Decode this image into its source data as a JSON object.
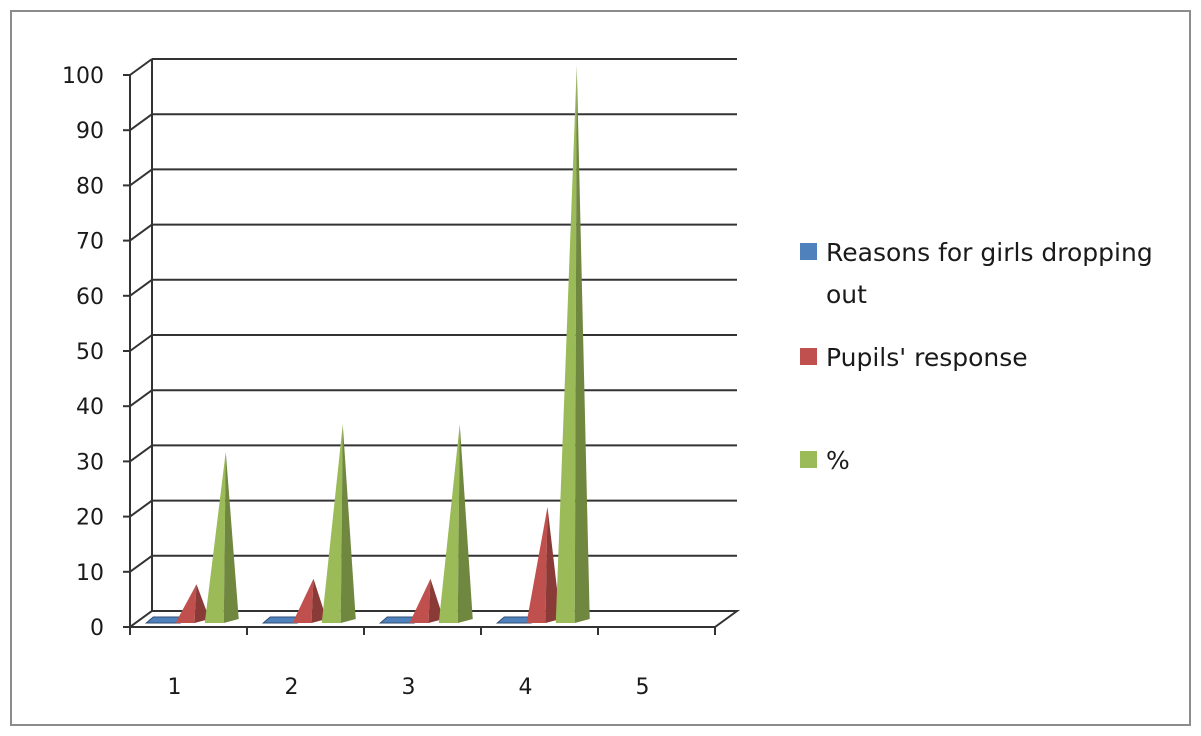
{
  "chart_data": {
    "type": "bar",
    "style": "3d-pyramid",
    "categories": [
      "1",
      "2",
      "3",
      "4",
      "5"
    ],
    "series": [
      {
        "name": "Reasons for girls dropping out",
        "values": [
          0,
          0,
          0,
          0,
          null
        ],
        "color": "#4f81bd"
      },
      {
        "name": "Pupils' response",
        "values": [
          6,
          7,
          7,
          20,
          null
        ],
        "color": "#c0504d"
      },
      {
        "name": "%",
        "values": [
          30,
          35,
          35,
          100,
          null
        ],
        "color": "#9bbb59"
      }
    ],
    "ylim": [
      0,
      100
    ],
    "yticks": [
      "0",
      "10",
      "20",
      "30",
      "40",
      "50",
      "60",
      "70",
      "80",
      "90",
      "100"
    ],
    "grid": true,
    "legend_position": "right"
  }
}
